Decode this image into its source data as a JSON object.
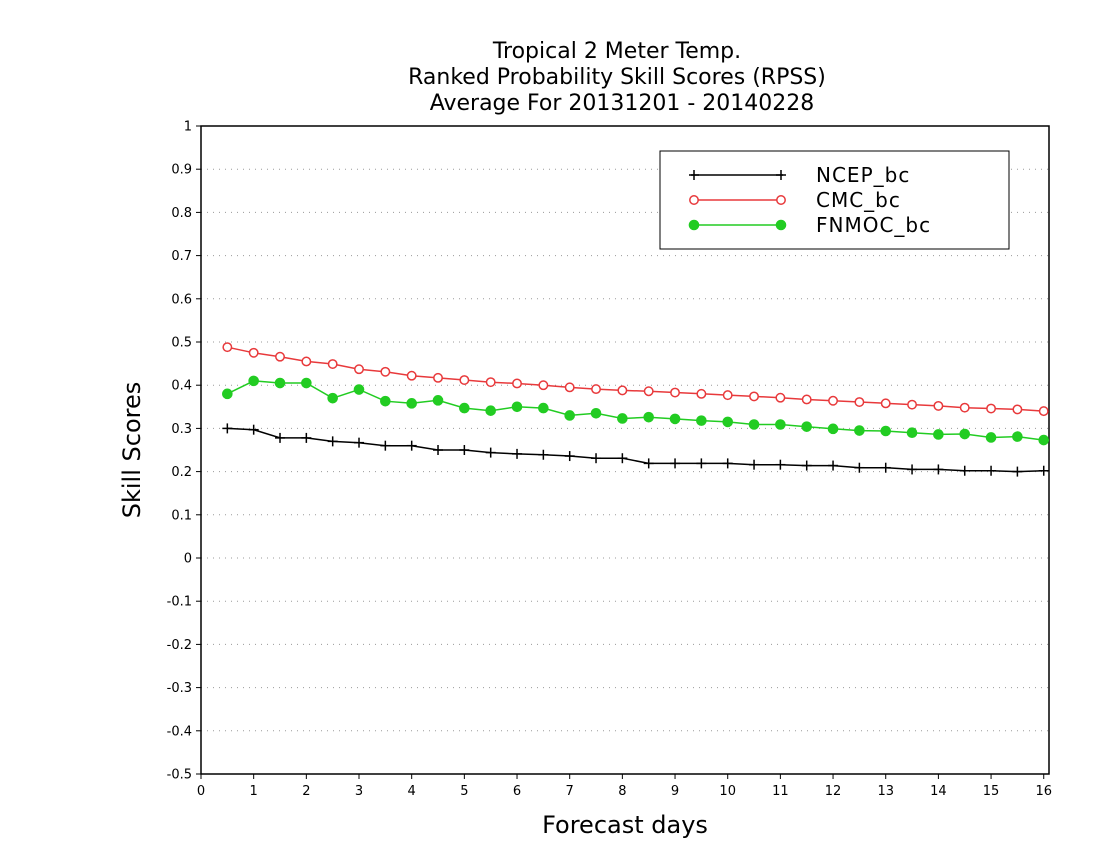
{
  "chart_data": {
    "type": "line",
    "title_lines": [
      "Tropical 2 Meter Temp.",
      "Ranked Probability Skill Scores (RPSS)",
      "Average For 20131201 - 20140228"
    ],
    "xlabel": "Forecast days",
    "ylabel": "Skill Scores",
    "xlim": [
      0,
      16.1
    ],
    "ylim": [
      -0.5,
      1
    ],
    "xticks": [
      0,
      1,
      2,
      3,
      4,
      5,
      6,
      7,
      8,
      9,
      10,
      11,
      12,
      13,
      14,
      15,
      16
    ],
    "yticks": [
      -0.5,
      -0.4,
      -0.3,
      -0.2,
      -0.1,
      0,
      0.1,
      0.2,
      0.3,
      0.4,
      0.5,
      0.6,
      0.7,
      0.8,
      0.9,
      1
    ],
    "ytick_labels": [
      "-0.5",
      "-0.4",
      "-0.3",
      "-0.2",
      "-0.1",
      "0",
      "0.1",
      "0.2",
      "0.3",
      "0.4",
      "0.5",
      "0.6",
      "0.7",
      "0.8",
      "0.9",
      "1"
    ],
    "grid": "horizontal-dotted",
    "legend_position": "top-right",
    "x": [
      0.5,
      1.0,
      1.5,
      2.0,
      2.5,
      3.0,
      3.5,
      4.0,
      4.5,
      5.0,
      5.5,
      6.0,
      6.5,
      7.0,
      7.5,
      8.0,
      8.5,
      9.0,
      9.5,
      10.0,
      10.5,
      11.0,
      11.5,
      12.0,
      12.5,
      13.0,
      13.5,
      14.0,
      14.5,
      15.0,
      15.5,
      16.0
    ],
    "series": [
      {
        "name": "NCEP_bc",
        "color": "#000000",
        "marker": "plus",
        "values": [
          0.3,
          0.297,
          0.278,
          0.278,
          0.27,
          0.267,
          0.26,
          0.26,
          0.25,
          0.25,
          0.244,
          0.241,
          0.239,
          0.236,
          0.231,
          0.231,
          0.219,
          0.219,
          0.219,
          0.219,
          0.216,
          0.216,
          0.214,
          0.214,
          0.209,
          0.209,
          0.205,
          0.205,
          0.202,
          0.202,
          0.2,
          0.202
        ]
      },
      {
        "name": "CMC_bc",
        "color": "#e8393b",
        "marker": "open-circle",
        "values": [
          0.488,
          0.475,
          0.466,
          0.455,
          0.449,
          0.437,
          0.431,
          0.422,
          0.417,
          0.412,
          0.407,
          0.404,
          0.4,
          0.395,
          0.391,
          0.388,
          0.386,
          0.383,
          0.38,
          0.377,
          0.374,
          0.371,
          0.367,
          0.364,
          0.361,
          0.358,
          0.355,
          0.352,
          0.348,
          0.346,
          0.344,
          0.34
        ]
      },
      {
        "name": "FNMOC_bc",
        "color": "#22cc22",
        "marker": "filled-circle",
        "values": [
          0.38,
          0.41,
          0.405,
          0.405,
          0.37,
          0.39,
          0.363,
          0.358,
          0.365,
          0.347,
          0.341,
          0.35,
          0.347,
          0.33,
          0.335,
          0.323,
          0.326,
          0.322,
          0.318,
          0.315,
          0.309,
          0.309,
          0.304,
          0.299,
          0.295,
          0.294,
          0.29,
          0.286,
          0.287,
          0.279,
          0.281,
          0.273
        ]
      }
    ]
  }
}
